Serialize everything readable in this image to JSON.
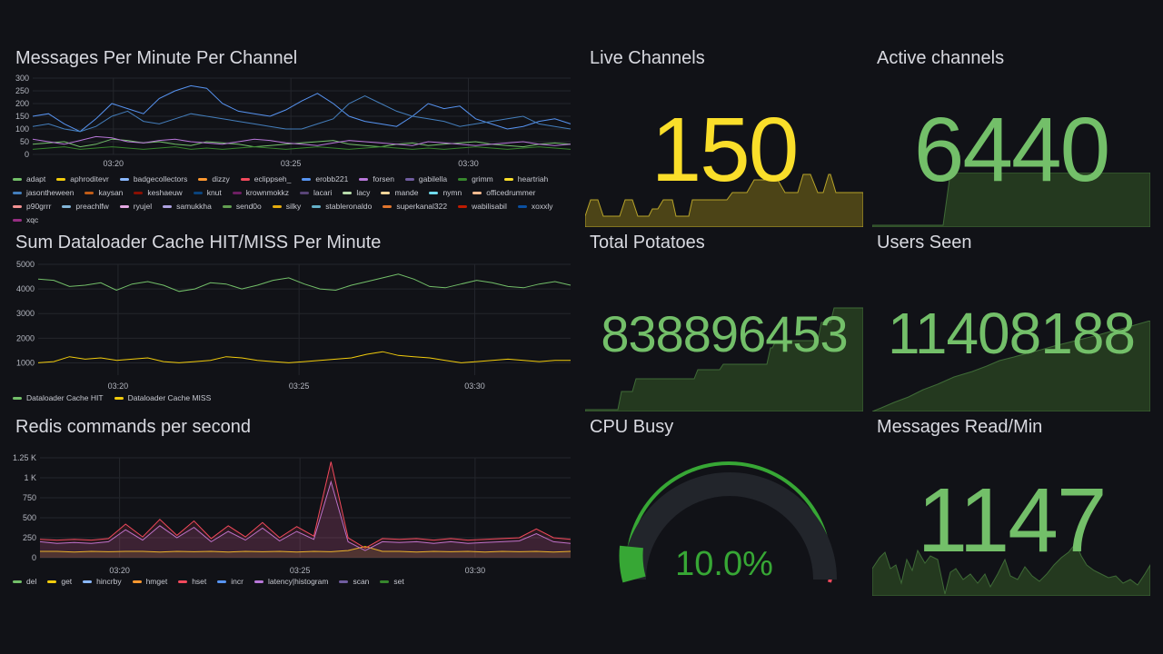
{
  "panels": {
    "messages": {
      "title": "Messages Per Minute Per Channel",
      "legend": [
        {
          "name": "adapt",
          "color": "#73bf69"
        },
        {
          "name": "aphroditevr",
          "color": "#f2cc0c"
        },
        {
          "name": "badgecollectors",
          "color": "#8ab8ff"
        },
        {
          "name": "dizzy",
          "color": "#ff9830"
        },
        {
          "name": "eclippseh_",
          "color": "#f2495c"
        },
        {
          "name": "erobb221",
          "color": "#5794f2"
        },
        {
          "name": "forsen",
          "color": "#b877d9"
        },
        {
          "name": "gabilella",
          "color": "#705da0"
        },
        {
          "name": "grimm",
          "color": "#37872d"
        },
        {
          "name": "heartriah",
          "color": "#fade2a"
        },
        {
          "name": "jasontheween",
          "color": "#447ebc"
        },
        {
          "name": "kaysan",
          "color": "#c15c17"
        },
        {
          "name": "keshaeuw",
          "color": "#890f02"
        },
        {
          "name": "knut",
          "color": "#0a437c"
        },
        {
          "name": "krownmokkz",
          "color": "#6d1f62"
        },
        {
          "name": "lacari",
          "color": "#584477"
        },
        {
          "name": "lacy",
          "color": "#b7dbab"
        },
        {
          "name": "mande",
          "color": "#f4d598"
        },
        {
          "name": "nymn",
          "color": "#70dbed"
        },
        {
          "name": "officedrummer",
          "color": "#f9ba8f"
        },
        {
          "name": "p90grrr",
          "color": "#f29191"
        },
        {
          "name": "preachlfw",
          "color": "#82b5d8"
        },
        {
          "name": "ryujel",
          "color": "#e5a8e2"
        },
        {
          "name": "samukkha",
          "color": "#aea2e0"
        },
        {
          "name": "send0o",
          "color": "#629e51"
        },
        {
          "name": "silky",
          "color": "#e5ac0e"
        },
        {
          "name": "stableronaldo",
          "color": "#64b0c8"
        },
        {
          "name": "superkanal322",
          "color": "#e0752d"
        },
        {
          "name": "wabilisabil",
          "color": "#bf1b00"
        },
        {
          "name": "xoxxly",
          "color": "#0a50a1"
        },
        {
          "name": "xqc",
          "color": "#962d82"
        }
      ]
    },
    "cache": {
      "title": "Sum Dataloader Cache HIT/MISS Per Minute",
      "legend": [
        {
          "name": "Dataloader Cache HIT",
          "color": "#73bf69"
        },
        {
          "name": "Dataloader Cache MISS",
          "color": "#f2cc0c"
        }
      ]
    },
    "redis": {
      "title": "Redis commands per second",
      "legend": [
        {
          "name": "del",
          "color": "#73bf69"
        },
        {
          "name": "get",
          "color": "#f2cc0c"
        },
        {
          "name": "hincrby",
          "color": "#8ab8ff"
        },
        {
          "name": "hmget",
          "color": "#ff9830"
        },
        {
          "name": "hset",
          "color": "#f2495c"
        },
        {
          "name": "incr",
          "color": "#5794f2"
        },
        {
          "name": "latency|histogram",
          "color": "#b877d9"
        },
        {
          "name": "scan",
          "color": "#705da0"
        },
        {
          "name": "set",
          "color": "#37872d"
        }
      ]
    },
    "live": {
      "title": "Live Channels",
      "value": "150",
      "color": "#fade2a"
    },
    "active": {
      "title": "Active channels",
      "value": "6440",
      "color": "#73bf69"
    },
    "potatoes": {
      "title": "Total Potatoes",
      "value": "838896453",
      "color": "#73bf69"
    },
    "users": {
      "title": "Users Seen",
      "value": "11408188",
      "color": "#73bf69"
    },
    "cpu": {
      "title": "CPU Busy",
      "value": "10.0%",
      "percent": 10.0,
      "color": "#37a735"
    },
    "msgread": {
      "title": "Messages Read/Min",
      "value": "1147",
      "color": "#73bf69"
    }
  },
  "chart_data": [
    {
      "type": "line",
      "title": "Messages Per Minute Per Channel",
      "y_ticks": [
        "300",
        "250",
        "200",
        "150",
        "100",
        "50",
        "0"
      ],
      "ylim": [
        0,
        300
      ],
      "x_ticks": [
        "03:20",
        "03:25",
        "03:30"
      ],
      "series": [
        {
          "name": "erobb221",
          "values": [
            150,
            160,
            120,
            90,
            140,
            200,
            180,
            160,
            220,
            250,
            270,
            260,
            200,
            170,
            160,
            150,
            175,
            210,
            240,
            200,
            150,
            130,
            120,
            110,
            150,
            200,
            180,
            190,
            140,
            120,
            100,
            110,
            130,
            140,
            120
          ]
        },
        {
          "name": "jasontheween",
          "values": [
            110,
            120,
            100,
            90,
            110,
            150,
            170,
            130,
            120,
            140,
            160,
            150,
            140,
            130,
            120,
            110,
            100,
            100,
            120,
            140,
            200,
            230,
            200,
            170,
            150,
            140,
            130,
            110,
            120,
            130,
            140,
            150,
            120,
            110,
            100
          ]
        },
        {
          "name": "adapt",
          "values": [
            40,
            45,
            50,
            30,
            40,
            60,
            55,
            45,
            50,
            40,
            35,
            50,
            45,
            40,
            30,
            35,
            40,
            45,
            50,
            55,
            40,
            35,
            30,
            40,
            45,
            35,
            40,
            45,
            50,
            40,
            35,
            30,
            40,
            45,
            40
          ]
        },
        {
          "name": "forsen",
          "values": [
            60,
            50,
            40,
            55,
            70,
            65,
            50,
            45,
            55,
            60,
            50,
            45,
            40,
            50,
            60,
            55,
            45,
            40,
            35,
            45,
            55,
            50,
            45,
            40,
            35,
            50,
            45,
            40,
            35,
            40,
            45,
            50,
            40,
            35,
            40
          ]
        },
        {
          "name": "grimm",
          "values": [
            20,
            25,
            30,
            20,
            25,
            30,
            25,
            20,
            25,
            30,
            20,
            25,
            20,
            25,
            30,
            25,
            20,
            25,
            30,
            25,
            20,
            25,
            30,
            25,
            20,
            25,
            20,
            25,
            30,
            25,
            20,
            25,
            30,
            25,
            20
          ]
        }
      ]
    },
    {
      "type": "line",
      "title": "Sum Dataloader Cache HIT/MISS Per Minute",
      "y_ticks": [
        "5000",
        "4000",
        "3000",
        "2000",
        "1000"
      ],
      "ylim": [
        500,
        5000
      ],
      "x_ticks": [
        "03:20",
        "03:25",
        "03:30"
      ],
      "series": [
        {
          "name": "Dataloader Cache HIT",
          "values": [
            4400,
            4350,
            4100,
            4150,
            4250,
            3950,
            4200,
            4300,
            4150,
            3900,
            4000,
            4250,
            4200,
            4000,
            4150,
            4350,
            4450,
            4200,
            4000,
            3950,
            4150,
            4300,
            4450,
            4600,
            4400,
            4100,
            4050,
            4200,
            4350,
            4250,
            4100,
            4050,
            4200,
            4300,
            4150
          ]
        },
        {
          "name": "Dataloader Cache MISS",
          "values": [
            1000,
            1050,
            1250,
            1150,
            1200,
            1100,
            1150,
            1200,
            1050,
            1000,
            1050,
            1100,
            1250,
            1200,
            1100,
            1050,
            1000,
            1050,
            1100,
            1150,
            1200,
            1350,
            1450,
            1300,
            1250,
            1200,
            1100,
            1000,
            1050,
            1100,
            1150,
            1100,
            1050,
            1100,
            1100
          ]
        }
      ]
    },
    {
      "type": "area",
      "title": "Redis commands per second",
      "y_ticks": [
        "1.25 K",
        "1 K",
        "750",
        "500",
        "250",
        "0"
      ],
      "ylim": [
        0,
        1250
      ],
      "x_ticks": [
        "03:20",
        "03:25",
        "03:30"
      ],
      "series": [
        {
          "name": "get",
          "values": [
            80,
            80,
            70,
            80,
            75,
            80,
            80,
            70,
            80,
            75,
            80,
            70,
            80,
            75,
            80,
            70,
            80,
            75,
            90,
            140,
            80,
            80,
            70,
            80,
            75,
            80,
            70,
            80,
            75,
            80,
            70,
            80
          ]
        },
        {
          "name": "latency|histogram",
          "values": [
            200,
            180,
            190,
            180,
            200,
            350,
            220,
            400,
            250,
            380,
            200,
            330,
            220,
            370,
            210,
            330,
            230,
            950,
            200,
            90,
            200,
            190,
            200,
            180,
            200,
            180,
            190,
            200,
            210,
            300,
            200,
            180
          ]
        },
        {
          "name": "hset",
          "values": [
            230,
            220,
            230,
            220,
            240,
            420,
            260,
            480,
            280,
            460,
            240,
            400,
            260,
            440,
            250,
            390,
            270,
            1200,
            250,
            120,
            240,
            230,
            240,
            220,
            240,
            220,
            230,
            240,
            250,
            360,
            250,
            230
          ]
        }
      ]
    }
  ]
}
